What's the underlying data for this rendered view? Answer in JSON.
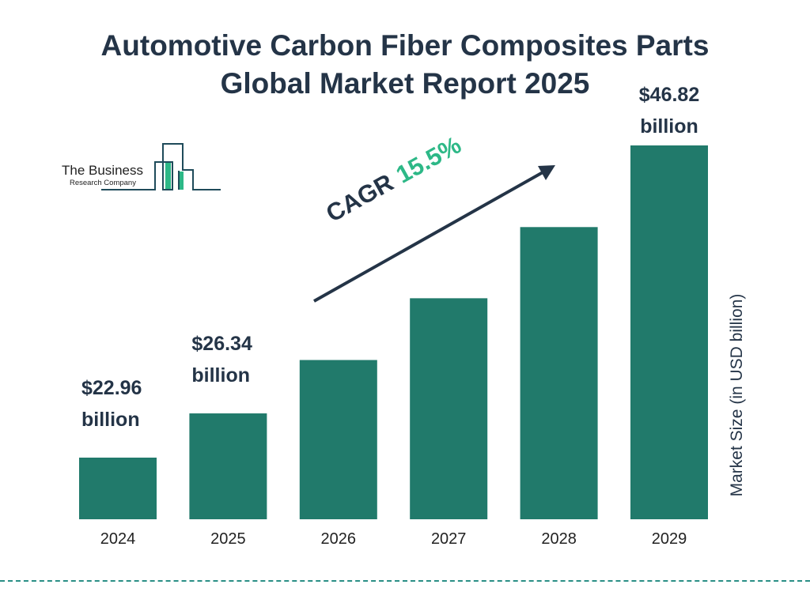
{
  "chart_data": {
    "type": "bar",
    "title": "Automotive Carbon Fiber Composites Parts Global Market Report 2025",
    "title_lines": [
      "Automotive Carbon Fiber Composites Parts",
      "Global Market Report 2025"
    ],
    "categories": [
      "2024",
      "2025",
      "2026",
      "2027",
      "2028",
      "2029"
    ],
    "values": [
      22.96,
      26.34,
      30.42,
      35.14,
      40.58,
      46.82
    ],
    "data_labels": [
      {
        "index": 0,
        "line1": "$22.96",
        "line2": "billion"
      },
      {
        "index": 1,
        "line1": "$26.34",
        "line2": "billion"
      },
      {
        "index": 5,
        "line1": "$46.82",
        "line2": "billion"
      }
    ],
    "xlabel": "",
    "ylabel": "Market Size (in USD billion)",
    "grid": false,
    "bar_color": "#217A6B",
    "annotation": {
      "label": "CAGR",
      "value": "15.5%",
      "value_color": "#2DB887"
    }
  },
  "logo": {
    "line1": "The Business",
    "line2": "Research Company",
    "accent": "#2DB887",
    "outline": "#1F4B5A"
  }
}
